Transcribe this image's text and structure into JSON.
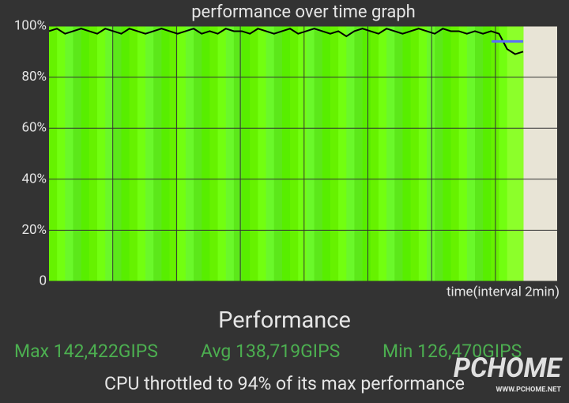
{
  "chart_data": {
    "type": "line",
    "title": "performance over time graph",
    "x_label": "time(interval 2min)",
    "values": [
      98,
      99,
      97,
      98,
      99,
      98,
      97,
      99,
      98,
      97,
      99,
      98,
      97,
      98,
      99,
      98,
      97,
      98,
      99,
      97,
      98,
      97,
      99,
      98,
      98,
      97,
      99,
      98,
      97,
      98,
      99,
      97,
      98,
      99,
      98,
      97,
      98,
      96,
      98,
      99,
      98,
      97,
      99,
      98,
      97,
      98,
      99,
      98,
      97,
      99,
      98,
      98,
      97,
      98,
      97,
      98,
      97,
      91,
      89,
      90
    ],
    "color": "#000000",
    "throttle_level": 94,
    "throttle_color": "#5b6cff",
    "ylim": [
      0,
      100
    ],
    "yticks": [
      0,
      {
        "value": 20,
        "label": "20%"
      },
      {
        "value": 40,
        "label": "40%"
      },
      {
        "value": 60,
        "label": "60%"
      },
      {
        "value": 80,
        "label": "80%"
      },
      {
        "value": 100,
        "label": "100%"
      }
    ],
    "grid": true
  },
  "panel": {
    "heading": "Performance",
    "stats": [
      "Max 142,422GIPS",
      "Avg 138,719GIPS",
      "Min 126,470GIPS"
    ],
    "note": "CPU throttled to 94% of its max performance"
  },
  "watermark": {
    "brand": "PCHOME",
    "url": "WWW.PCHOME.NET"
  }
}
